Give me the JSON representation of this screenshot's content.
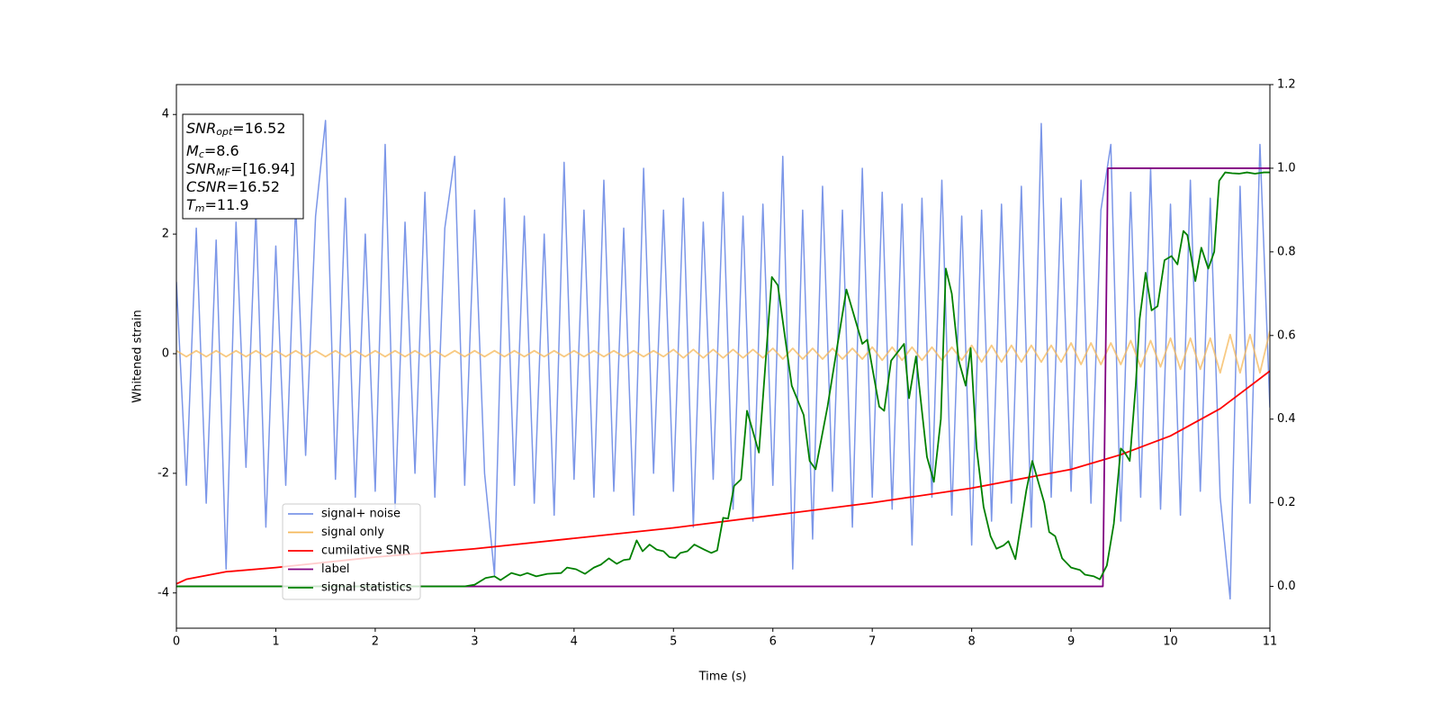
{
  "chart_data": {
    "type": "line",
    "xlabel": "Time (s)",
    "ylabel": "Whitened strain",
    "xlim": [
      0,
      11
    ],
    "ylim": [
      -4.59,
      4.5
    ],
    "y2lim": [
      -0.1,
      1.2
    ],
    "xticks": [
      0,
      1,
      2,
      3,
      4,
      5,
      6,
      7,
      8,
      9,
      10,
      11
    ],
    "yticks": [
      -4,
      -2,
      0,
      2,
      4
    ],
    "y2ticks": [
      {
        "value": 0,
        "label": "0.0"
      },
      0.2,
      0.4,
      0.6,
      0.8,
      {
        "value": 1,
        "label": "1.0"
      },
      1.2
    ],
    "annotations": [
      {
        "main": "SNR",
        "sub": "opt",
        "rest": "=16.52"
      },
      {
        "main": "M",
        "sub": "c",
        "rest": "=8.6"
      },
      {
        "main": "SNR",
        "sub": "MF",
        "rest": "=[16.94]"
      },
      {
        "main": "CSNR",
        "rest": "=16.52"
      },
      {
        "main": "T",
        "sub": "m",
        "rest": "=11.9"
      }
    ],
    "x": [
      0,
      0.1,
      0.2,
      0.3,
      0.4,
      0.5,
      0.6,
      0.7,
      0.8,
      0.9,
      1,
      1.1,
      1.2,
      1.3,
      1.4,
      1.5,
      1.6,
      1.7,
      1.8,
      1.9,
      2,
      2.1,
      2.2,
      2.3,
      2.4,
      2.5,
      2.6,
      2.7,
      2.8,
      2.9,
      3,
      3.1,
      3.2,
      3.3,
      3.4,
      3.5,
      3.6,
      3.7,
      3.8,
      3.9,
      4,
      4.1,
      4.2,
      4.3,
      4.4,
      4.5,
      4.6,
      4.7,
      4.8,
      4.9,
      5,
      5.1,
      5.2,
      5.3,
      5.4,
      5.5,
      5.6,
      5.7,
      5.8,
      5.9,
      6,
      6.1,
      6.2,
      6.3,
      6.4,
      6.5,
      6.6,
      6.7,
      6.8,
      6.9,
      7,
      7.1,
      7.2,
      7.3,
      7.4,
      7.5,
      7.6,
      7.7,
      7.8,
      7.9,
      8,
      8.1,
      8.2,
      8.3,
      8.4,
      8.5,
      8.6,
      8.7,
      8.8,
      8.9,
      9,
      9.1,
      9.2,
      9.3,
      9.4,
      9.5,
      9.6,
      9.7,
      9.8,
      9.9,
      10,
      10.1,
      10.2,
      10.3,
      10.4,
      10.5,
      10.6,
      10.7,
      10.8,
      10.9,
      11
    ],
    "series": [
      {
        "name": "signal+ noise",
        "color": "#7b96e8",
        "values": [
          1.2,
          -2.2,
          2.1,
          -2.5,
          1.9,
          -3.6,
          2.2,
          -1.9,
          2.4,
          -2.9,
          1.8,
          -2.2,
          2.5,
          -1.7,
          2.3,
          3.9,
          -2.1,
          2.6,
          -2.4,
          2.0,
          -2.3,
          3.5,
          -2.6,
          2.2,
          -2.0,
          2.7,
          -2.4,
          2.1,
          3.3,
          -2.2,
          2.4,
          -2.0,
          -3.7,
          2.6,
          -2.2,
          2.3,
          -2.5,
          2.0,
          -2.7,
          3.2,
          -2.1,
          2.4,
          -2.4,
          2.9,
          -2.3,
          2.1,
          -2.7,
          3.1,
          -2.0,
          2.4,
          -2.3,
          2.6,
          -2.9,
          2.2,
          -2.1,
          2.7,
          -2.6,
          2.3,
          -2.8,
          2.5,
          -2.2,
          3.3,
          -3.6,
          2.4,
          -3.1,
          2.8,
          -2.3,
          2.4,
          -2.9,
          3.1,
          -2.4,
          2.7,
          -2.6,
          2.5,
          -3.2,
          2.6,
          -2.4,
          2.9,
          -2.7,
          2.3,
          -3.2,
          2.4,
          -2.8,
          2.5,
          -2.5,
          2.8,
          -2.9,
          3.85,
          -2.4,
          2.6,
          -2.3,
          2.9,
          -2.5,
          2.4,
          3.5,
          -2.8,
          2.7,
          -2.4,
          3.1,
          -2.6,
          2.5,
          -2.7,
          2.9,
          -2.3,
          2.6,
          -2.4,
          -4.1,
          2.8,
          -2.5,
          3.5,
          -0.9
        ]
      },
      {
        "name": "signal only",
        "color": "#f5b85a",
        "values": [
          0.05,
          -0.05,
          0.05,
          -0.05,
          0.05,
          -0.05,
          0.05,
          -0.05,
          0.05,
          -0.05,
          0.05,
          -0.05,
          0.05,
          -0.05,
          0.05,
          -0.05,
          0.05,
          -0.05,
          0.05,
          -0.05,
          0.05,
          -0.05,
          0.05,
          -0.05,
          0.05,
          -0.05,
          0.05,
          -0.05,
          0.05,
          -0.05,
          0.05,
          -0.05,
          0.05,
          -0.05,
          0.05,
          -0.05,
          0.05,
          -0.05,
          0.05,
          -0.05,
          0.05,
          -0.05,
          0.05,
          -0.05,
          0.05,
          -0.05,
          0.05,
          -0.05,
          0.05,
          -0.05,
          0.07,
          -0.07,
          0.07,
          -0.07,
          0.07,
          -0.07,
          0.07,
          -0.07,
          0.07,
          -0.07,
          0.09,
          -0.09,
          0.09,
          -0.09,
          0.09,
          -0.09,
          0.09,
          -0.09,
          0.09,
          -0.09,
          0.11,
          -0.11,
          0.11,
          -0.11,
          0.11,
          -0.11,
          0.11,
          -0.11,
          0.11,
          -0.11,
          0.14,
          -0.14,
          0.14,
          -0.14,
          0.14,
          -0.14,
          0.14,
          -0.14,
          0.14,
          -0.14,
          0.18,
          -0.18,
          0.18,
          -0.18,
          0.18,
          -0.18,
          0.22,
          -0.22,
          0.22,
          -0.22,
          0.26,
          -0.26,
          0.26,
          -0.26,
          0.26,
          -0.32,
          0.32,
          -0.32,
          0.32,
          -0.32,
          0.38
        ]
      },
      {
        "name": "cumilative SNR",
        "color": "#ff0000",
        "axis": "y2",
        "x": [
          0,
          0.1,
          0.5,
          1,
          2,
          3,
          4,
          5,
          6,
          7,
          8,
          9,
          9.5,
          10,
          10.5,
          11
        ],
        "values": [
          0.006,
          0.017,
          0.035,
          0.045,
          0.07,
          0.09,
          0.115,
          0.14,
          0.17,
          0.2,
          0.235,
          0.28,
          0.315,
          0.36,
          0.425,
          0.515
        ]
      },
      {
        "name": "label",
        "color": "#800080",
        "axis": "y2",
        "x": [
          0,
          9.32,
          9.37,
          11
        ],
        "values": [
          0,
          0,
          1,
          1
        ]
      },
      {
        "name": "signal statistics",
        "color": "#008000",
        "axis": "y2",
        "x": [
          0,
          2.9,
          3.0,
          3.11,
          3.2,
          3.26,
          3.37,
          3.46,
          3.53,
          3.62,
          3.73,
          3.87,
          3.93,
          4.02,
          4.11,
          4.2,
          4.27,
          4.35,
          4.43,
          4.5,
          4.56,
          4.63,
          4.69,
          4.76,
          4.83,
          4.9,
          4.96,
          5.02,
          5.07,
          5.14,
          5.21,
          5.31,
          5.38,
          5.44,
          5.5,
          5.55,
          5.61,
          5.68,
          5.74,
          5.86,
          5.99,
          6.05,
          6.19,
          6.31,
          6.37,
          6.43,
          6.55,
          6.74,
          6.9,
          6.95,
          7.07,
          7.12,
          7.19,
          7.32,
          7.37,
          7.44,
          7.55,
          7.62,
          7.69,
          7.74,
          7.8,
          7.87,
          7.94,
          7.99,
          8.05,
          8.12,
          8.19,
          8.25,
          8.32,
          8.37,
          8.44,
          8.55,
          8.61,
          8.73,
          8.78,
          8.84,
          8.91,
          9.0,
          9.09,
          9.14,
          9.23,
          9.29,
          9.36,
          9.43,
          9.5,
          9.54,
          9.59,
          9.65,
          9.69,
          9.75,
          9.81,
          9.87,
          9.94,
          10.01,
          10.07,
          10.13,
          10.17,
          10.25,
          10.31,
          10.38,
          10.44,
          10.49,
          10.55,
          10.62,
          10.69,
          10.77,
          10.85,
          10.94,
          11
        ],
        "values": [
          0,
          0,
          0.004,
          0.02,
          0.024,
          0.015,
          0.032,
          0.026,
          0.032,
          0.024,
          0.03,
          0.032,
          0.045,
          0.041,
          0.03,
          0.045,
          0.052,
          0.067,
          0.054,
          0.063,
          0.065,
          0.11,
          0.084,
          0.1,
          0.088,
          0.084,
          0.07,
          0.068,
          0.08,
          0.084,
          0.1,
          0.088,
          0.08,
          0.086,
          0.164,
          0.162,
          0.24,
          0.256,
          0.42,
          0.32,
          0.74,
          0.72,
          0.48,
          0.41,
          0.3,
          0.28,
          0.43,
          0.71,
          0.58,
          0.59,
          0.43,
          0.42,
          0.54,
          0.58,
          0.45,
          0.55,
          0.31,
          0.25,
          0.4,
          0.76,
          0.7,
          0.54,
          0.48,
          0.57,
          0.33,
          0.19,
          0.12,
          0.09,
          0.098,
          0.108,
          0.065,
          0.23,
          0.3,
          0.2,
          0.13,
          0.12,
          0.067,
          0.045,
          0.039,
          0.028,
          0.024,
          0.017,
          0.05,
          0.15,
          0.33,
          0.32,
          0.3,
          0.48,
          0.64,
          0.75,
          0.66,
          0.67,
          0.78,
          0.79,
          0.77,
          0.85,
          0.84,
          0.73,
          0.81,
          0.76,
          0.8,
          0.97,
          0.99,
          0.988,
          0.987,
          0.99,
          0.987,
          0.99,
          0.99
        ]
      }
    ]
  }
}
